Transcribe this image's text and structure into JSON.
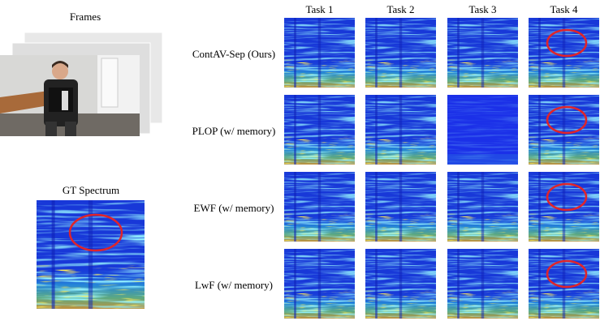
{
  "frames_label": "Frames",
  "gt_label": "GT Spectrum",
  "tasks": [
    "Task 1",
    "Task 2",
    "Task 3",
    "Task 4"
  ],
  "methods": [
    "ContAV-Sep (Ours)",
    "PLOP (w/ memory)",
    "EWF (w/ memory)",
    "LwF (w/ memory)"
  ]
}
